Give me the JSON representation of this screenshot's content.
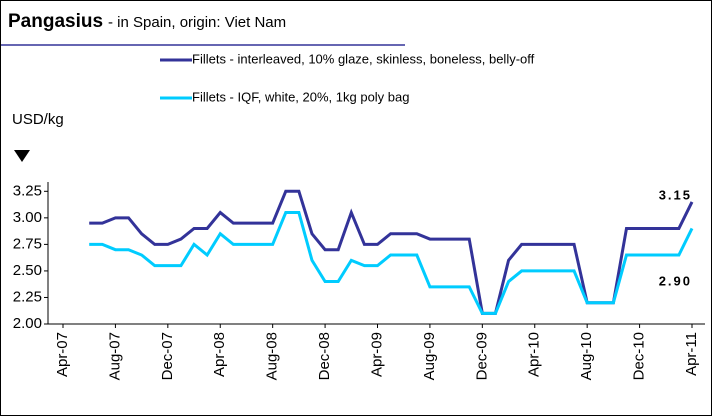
{
  "chart_data": {
    "type": "line",
    "title": "Pangasius",
    "subtitle": "- in Spain, origin: Viet Nam",
    "y_label": "USD/kg",
    "categories": [
      "Apr-07",
      null,
      null,
      null,
      "Aug-07",
      null,
      null,
      null,
      "Dec-07",
      null,
      null,
      null,
      "Apr-08",
      null,
      null,
      null,
      "Aug-08",
      null,
      null,
      null,
      "Dec-08",
      null,
      null,
      null,
      "Apr-09",
      null,
      null,
      null,
      "Aug-09",
      null,
      null,
      null,
      "Dec-09",
      null,
      null,
      null,
      "Apr-10",
      null,
      null,
      null,
      "Aug-10",
      null,
      null,
      null,
      "Dec-10",
      null,
      null,
      null,
      "Apr-11"
    ],
    "series": [
      {
        "name": "Fillets - interleaved, 10% glaze, skinless, boneless, belly-off",
        "color": "#333399",
        "values": [
          null,
          null,
          2.95,
          2.95,
          3.0,
          3.0,
          2.85,
          2.75,
          2.75,
          2.8,
          2.9,
          2.9,
          3.05,
          2.95,
          2.95,
          2.95,
          2.95,
          3.25,
          3.25,
          2.85,
          2.7,
          2.7,
          3.05,
          2.75,
          2.75,
          2.85,
          2.85,
          2.85,
          2.8,
          2.8,
          2.8,
          2.8,
          2.1,
          2.1,
          2.6,
          2.75,
          2.75,
          2.75,
          2.75,
          2.75,
          2.2,
          2.2,
          2.2,
          2.9,
          2.9,
          2.9,
          2.9,
          2.9,
          3.15
        ],
        "value_labels": [
          null,
          null,
          null,
          null,
          null,
          null,
          null,
          null,
          null,
          null,
          null,
          null,
          null,
          null,
          null,
          null,
          null,
          null,
          null,
          null,
          null,
          null,
          null,
          null,
          null,
          null,
          null,
          null,
          null,
          null,
          null,
          null,
          null,
          null,
          null,
          null,
          null,
          null,
          null,
          null,
          null,
          null,
          null,
          null,
          null,
          null,
          null,
          null,
          "3.15"
        ]
      },
      {
        "name": "Fillets - IQF, white, 20%, 1kg poly bag",
        "color": "#00ccff",
        "values": [
          null,
          null,
          2.75,
          2.75,
          2.7,
          2.7,
          2.65,
          2.55,
          2.55,
          2.55,
          2.75,
          2.65,
          2.85,
          2.75,
          2.75,
          2.75,
          2.75,
          3.05,
          3.05,
          2.6,
          2.4,
          2.4,
          2.6,
          2.55,
          2.55,
          2.65,
          2.65,
          2.65,
          2.35,
          2.35,
          2.35,
          2.35,
          2.1,
          2.1,
          2.4,
          2.5,
          2.5,
          2.5,
          2.5,
          2.5,
          2.2,
          2.2,
          2.2,
          2.65,
          2.65,
          2.65,
          2.65,
          2.65,
          2.9
        ],
        "value_labels": [
          null,
          null,
          null,
          null,
          null,
          null,
          null,
          null,
          null,
          null,
          null,
          null,
          null,
          null,
          null,
          null,
          null,
          null,
          null,
          null,
          null,
          null,
          null,
          null,
          null,
          null,
          null,
          null,
          null,
          null,
          null,
          null,
          null,
          null,
          null,
          null,
          null,
          null,
          null,
          null,
          null,
          null,
          null,
          null,
          null,
          null,
          null,
          null,
          "2.90"
        ]
      }
    ],
    "ylim": [
      2.0,
      3.3
    ],
    "yticks": [
      {
        "value": 2.0,
        "label": "2.00"
      },
      {
        "value": 2.25,
        "label": "2.25"
      },
      {
        "value": 2.5,
        "label": "2.50"
      },
      {
        "value": 2.75,
        "label": "2.75"
      },
      {
        "value": 3.0,
        "label": "3.00"
      },
      {
        "value": 3.25,
        "label": "3.25"
      }
    ],
    "grid": false
  }
}
